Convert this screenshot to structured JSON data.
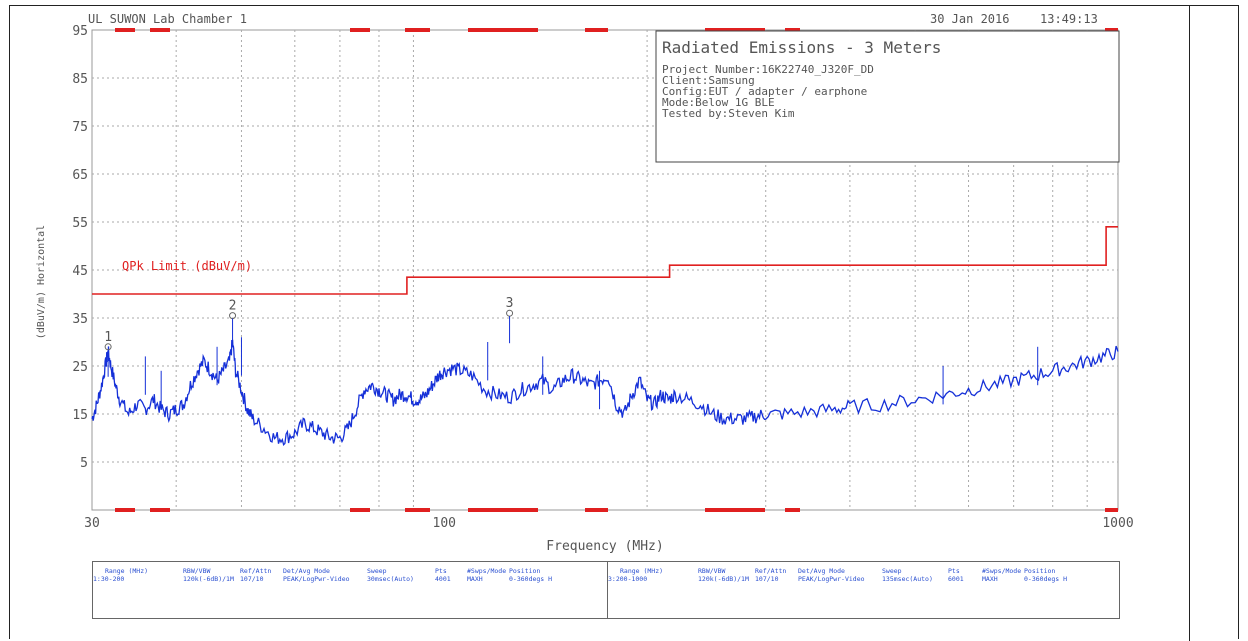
{
  "header": {
    "lab": "UL SUWON Lab Chamber 1",
    "date": "30 Jan 2016",
    "time": "13:49:13"
  },
  "info_box": {
    "title": "Radiated Emissions - 3 Meters",
    "lines": [
      "Project Number:16K22740_J320F_DD",
      "Client:Samsung",
      "Config:EUT / adapter / earphone",
      "Mode:Below 1G BLE",
      "Tested by:Steven Kim"
    ]
  },
  "colors": {
    "trace": "#1530d8",
    "limit": "#e02020",
    "grid": "#aaaaaa",
    "axis_text": "#555555"
  },
  "chart_data": {
    "type": "line",
    "title": "Radiated Emissions - 3 Meters",
    "xlabel": "Frequency (MHz)",
    "ylabel": "(dBuV/m) Horizontal",
    "x_scale": "log",
    "xlim": [
      30,
      1000
    ],
    "ylim": [
      -5,
      95
    ],
    "grid": true,
    "y_ticks": [
      5,
      15,
      25,
      35,
      45,
      55,
      65,
      75,
      85,
      95
    ],
    "x_tick_labels": [
      {
        "value": 30,
        "label": "30"
      },
      {
        "value": 100,
        "label": "100"
      },
      {
        "value": 1000,
        "label": "1000"
      }
    ],
    "x_grid": [
      40,
      50,
      60,
      70,
      80,
      90,
      200,
      300,
      400,
      500,
      600,
      700,
      800,
      900
    ],
    "limit_line": {
      "label": "QPk Limit (dBuV/m)",
      "points": [
        [
          30,
          40
        ],
        [
          88,
          40
        ],
        [
          88,
          43.5
        ],
        [
          216,
          43.5
        ],
        [
          216,
          46
        ],
        [
          960,
          46
        ],
        [
          960,
          54
        ],
        [
          1000,
          54
        ]
      ]
    },
    "markers": [
      {
        "label": "1",
        "x": 31.7,
        "y": 29
      },
      {
        "label": "2",
        "x": 48.5,
        "y": 35.5
      },
      {
        "label": "3",
        "x": 125,
        "y": 36
      }
    ],
    "series": [
      {
        "x": [
          30,
          30.5,
          31,
          31.5,
          31.7,
          32,
          32.5,
          33,
          34,
          35,
          36,
          37,
          38,
          39,
          40,
          41,
          42,
          43,
          44,
          45,
          46,
          47,
          48,
          48.5,
          49,
          50,
          51,
          52,
          54,
          56,
          58,
          60,
          62,
          64,
          66,
          68,
          70,
          72,
          74,
          76,
          78,
          80,
          82,
          84,
          86,
          88,
          90,
          92,
          94,
          96,
          98,
          100,
          103,
          106,
          110,
          115,
          120,
          125,
          130,
          135,
          140,
          145,
          150,
          155,
          160,
          165,
          170,
          175,
          180,
          185,
          190,
          195,
          200,
          205,
          210,
          215,
          220,
          230,
          240,
          250,
          260,
          270,
          280,
          290,
          300,
          320,
          350,
          380,
          400,
          450,
          500,
          550,
          600,
          650,
          700,
          750,
          800,
          850,
          900,
          950,
          1000
        ],
        "y": [
          14,
          17,
          21,
          26,
          28,
          25,
          21,
          18,
          15,
          17,
          16,
          18,
          16,
          15,
          16,
          17,
          21,
          24,
          26,
          24,
          22,
          24,
          26,
          30,
          24,
          20,
          16,
          14,
          12,
          10,
          10,
          11,
          13,
          12,
          11,
          10,
          10,
          12,
          16,
          20,
          21,
          20,
          19,
          18,
          19,
          19,
          18,
          18,
          19,
          21,
          23,
          24,
          24.5,
          24,
          23,
          20,
          19,
          18.5,
          20,
          21,
          22,
          20,
          22,
          23,
          22,
          21,
          22,
          23,
          17,
          15,
          19,
          22,
          18,
          17,
          19,
          18,
          19,
          18,
          17,
          15,
          14,
          14,
          14,
          14.5,
          15,
          15,
          15.5,
          16,
          16.5,
          17,
          18,
          19,
          20,
          21,
          22,
          23,
          24,
          25,
          26,
          27,
          28
        ]
      }
    ]
  },
  "settings_table": {
    "headers": [
      "Range (MHz)",
      "RBW/VBW",
      "Ref/Attn",
      "Det/Avg Mode",
      "Sweep",
      "Pts",
      "#Swps/Mode",
      "Position"
    ],
    "rows": [
      [
        "1:30-200",
        "120k(-6dB)/1M",
        "107/10",
        "PEAK/LogPwr-Video",
        "30msec(Auto)",
        "4001",
        "MAXH",
        "0-360degs H"
      ],
      [
        "3:200-1000",
        "120k(-6dB)/1M",
        "107/10",
        "PEAK/LogPwr-Video",
        "135msec(Auto)",
        "6001",
        "MAXH",
        "0-360degs H"
      ]
    ]
  }
}
